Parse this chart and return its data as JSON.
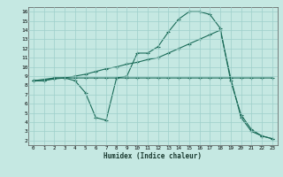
{
  "xlabel": "Humidex (Indice chaleur)",
  "xlim": [
    -0.5,
    23.5
  ],
  "ylim": [
    1.5,
    16.5
  ],
  "background_color": "#c5e8e2",
  "grid_color": "#9ecfca",
  "line_color": "#1a6b58",
  "xticks": [
    0,
    1,
    2,
    3,
    4,
    5,
    6,
    7,
    8,
    9,
    10,
    11,
    12,
    13,
    14,
    15,
    16,
    17,
    18,
    19,
    20,
    21,
    22,
    23
  ],
  "yticks": [
    2,
    3,
    4,
    5,
    6,
    7,
    8,
    9,
    10,
    11,
    12,
    13,
    14,
    15,
    16
  ],
  "line1_x": [
    0,
    1,
    2,
    3,
    4,
    5,
    6,
    7,
    8,
    9,
    10,
    11,
    12,
    13,
    14,
    15,
    16,
    17,
    18,
    19,
    20,
    21,
    22,
    23
  ],
  "line1_y": [
    8.5,
    8.5,
    8.7,
    8.8,
    8.5,
    7.2,
    4.5,
    4.2,
    8.8,
    9.0,
    11.5,
    11.5,
    12.2,
    13.8,
    15.2,
    16.0,
    16.0,
    15.7,
    14.2,
    8.5,
    4.8,
    3.2,
    2.5,
    2.2
  ],
  "line2_x": [
    0,
    2,
    3,
    4,
    5,
    6,
    7,
    8,
    9,
    10,
    11,
    12,
    13,
    14,
    15,
    16,
    17,
    18,
    19,
    20,
    21,
    22,
    23
  ],
  "line2_y": [
    8.5,
    8.8,
    8.8,
    8.8,
    8.8,
    8.8,
    8.8,
    8.8,
    8.8,
    8.8,
    8.8,
    8.8,
    8.8,
    8.8,
    8.8,
    8.8,
    8.8,
    8.8,
    8.8,
    8.8,
    8.8,
    8.8,
    8.8
  ],
  "line3_x": [
    0,
    1,
    2,
    3,
    4,
    5,
    6,
    7,
    8,
    9,
    10,
    11,
    12,
    13,
    14,
    15,
    16,
    17,
    18,
    19,
    20,
    21,
    22,
    23
  ],
  "line3_y": [
    8.5,
    8.5,
    8.8,
    8.8,
    9.0,
    9.2,
    9.5,
    9.8,
    10.0,
    10.3,
    10.5,
    10.8,
    11.0,
    11.5,
    12.0,
    12.5,
    13.0,
    13.5,
    14.0,
    8.8,
    4.5,
    3.0,
    2.5,
    2.2
  ]
}
